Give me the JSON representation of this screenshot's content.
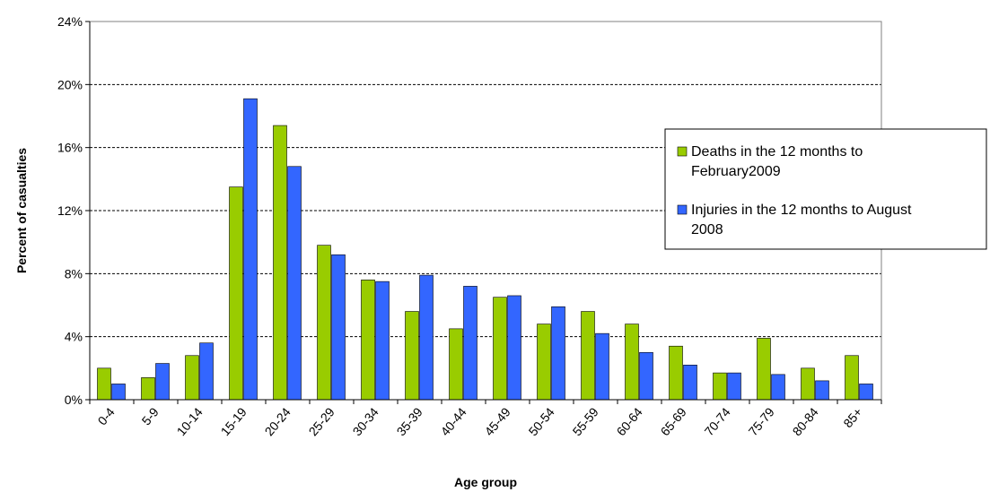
{
  "chart_data": {
    "type": "bar",
    "xlabel": "Age group",
    "ylabel": "Percent of casualties",
    "ylim": [
      0,
      24
    ],
    "yticks": [
      "0%",
      "4%",
      "8%",
      "12%",
      "16%",
      "20%",
      "24%"
    ],
    "grid": "horizontal dashed",
    "legend_position": "right",
    "categories": [
      "0-4",
      "5-9",
      "10-14",
      "15-19",
      "20-24",
      "25-29",
      "30-34",
      "35-39",
      "40-44",
      "45-49",
      "50-54",
      "55-59",
      "60-64",
      "65-69",
      "70-74",
      "75-79",
      "80-84",
      "85+"
    ],
    "series": [
      {
        "name": "Deaths in the 12 months to February 2009",
        "legend_lines": [
          "Deaths in the 12 months to",
          "February2009"
        ],
        "color": "#99cc00",
        "values": [
          2.0,
          1.4,
          2.8,
          13.5,
          17.4,
          9.8,
          7.6,
          5.6,
          4.5,
          6.5,
          4.8,
          5.6,
          4.8,
          3.4,
          1.7,
          3.9,
          2.0,
          2.8
        ]
      },
      {
        "name": "Injuries in the 12 months to August 2008",
        "legend_lines": [
          "Injuries in the 12 months to August",
          "2008"
        ],
        "color": "#3366ff",
        "values": [
          1.0,
          2.3,
          3.6,
          19.1,
          14.8,
          9.2,
          7.5,
          7.9,
          7.2,
          6.6,
          5.9,
          4.2,
          3.0,
          2.2,
          1.7,
          1.6,
          1.2,
          1.0
        ]
      }
    ]
  }
}
